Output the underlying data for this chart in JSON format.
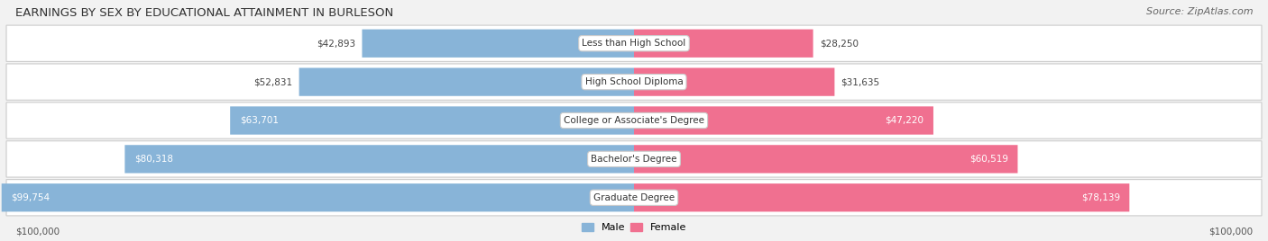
{
  "title": "EARNINGS BY SEX BY EDUCATIONAL ATTAINMENT IN BURLESON",
  "source": "Source: ZipAtlas.com",
  "categories": [
    "Less than High School",
    "High School Diploma",
    "College or Associate's Degree",
    "Bachelor's Degree",
    "Graduate Degree"
  ],
  "male_values": [
    42893,
    52831,
    63701,
    80318,
    99754
  ],
  "female_values": [
    28250,
    31635,
    47220,
    60519,
    78139
  ],
  "male_color": "#88b4d8",
  "female_color": "#f07090",
  "male_label": "Male",
  "female_label": "Female",
  "x_max": 100000,
  "background_color": "#f2f2f2",
  "row_bg_color": "#e8e8e8",
  "title_fontsize": 9.5,
  "source_fontsize": 8,
  "figsize": [
    14.06,
    2.68
  ],
  "dpi": 100
}
